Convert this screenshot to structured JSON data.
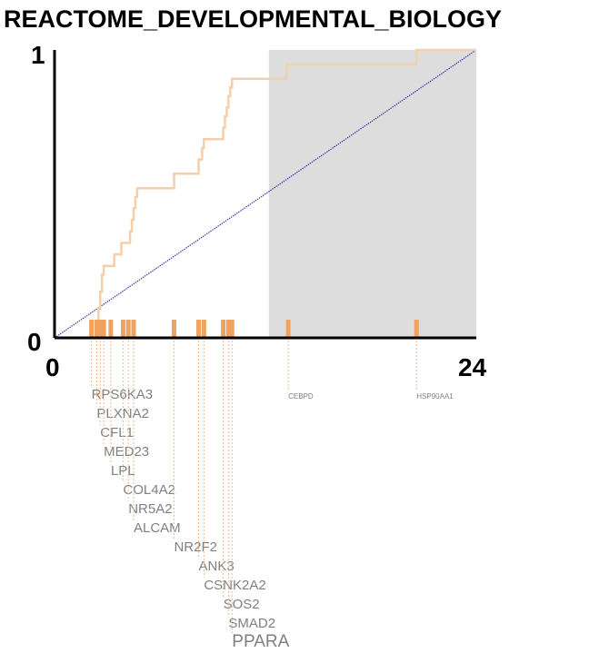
{
  "chart_data": {
    "type": "line",
    "title": "REACTOME_DEVELOPMENTAL_BIOLOGY",
    "xlim": [
      0,
      24
    ],
    "ylim": [
      0,
      1
    ],
    "x_ticks": [
      "0",
      "24"
    ],
    "y_ticks": [
      "0",
      "1"
    ],
    "grid": false,
    "shaded_region": {
      "x_start": 12.2,
      "x_end": 24
    },
    "colors": {
      "background": "#ffffff",
      "shade": "#dddddd",
      "curve": "#f5cfa9",
      "diagonal": "#3a3aa8",
      "rug": "#f0a25e",
      "leader": "#f4b98a",
      "gene_label": "#808080",
      "axis": "#000000"
    },
    "series": [
      {
        "steps": [
          [
            0,
            0
          ],
          [
            2.4,
            0.05
          ],
          [
            2.5,
            0.1
          ],
          [
            2.6,
            0.16
          ],
          [
            2.7,
            0.22
          ],
          [
            2.8,
            0.25
          ],
          [
            3.4,
            0.29
          ],
          [
            3.8,
            0.33
          ],
          [
            4.3,
            0.37
          ],
          [
            4.4,
            0.41
          ],
          [
            4.5,
            0.45
          ],
          [
            4.6,
            0.49
          ],
          [
            4.7,
            0.52
          ],
          [
            6.8,
            0.57
          ],
          [
            8.2,
            0.62
          ],
          [
            8.4,
            0.66
          ],
          [
            8.5,
            0.69
          ],
          [
            9.6,
            0.73
          ],
          [
            9.7,
            0.77
          ],
          [
            9.8,
            0.8
          ],
          [
            9.9,
            0.84
          ],
          [
            10.0,
            0.87
          ],
          [
            10.1,
            0.9
          ],
          [
            10.2,
            0.9
          ],
          [
            13.2,
            0.95
          ],
          [
            20.6,
            1.0
          ],
          [
            24,
            1.0
          ]
        ]
      },
      {
        "points": [
          [
            0,
            0
          ],
          [
            24,
            1
          ]
        ]
      }
    ],
    "rug": [
      {
        "x": 2.1,
        "gene": "RPS6KA3",
        "size": "medium"
      },
      {
        "x": 2.4,
        "gene": "PLXNA2",
        "size": "medium"
      },
      {
        "x": 2.6,
        "gene": "CFL1",
        "size": "medium"
      },
      {
        "x": 2.8,
        "gene": "MED23",
        "size": "medium"
      },
      {
        "x": 3.2,
        "gene": "LPL",
        "size": "medium"
      },
      {
        "x": 3.9,
        "gene": "COL4A2",
        "size": "medium"
      },
      {
        "x": 4.2,
        "gene": "NR5A2",
        "size": "medium"
      },
      {
        "x": 4.5,
        "gene": "ALCAM",
        "size": "medium"
      },
      {
        "x": 6.8,
        "gene": "NR2F2",
        "size": "medium"
      },
      {
        "x": 8.2,
        "gene": "ANK3",
        "size": "medium"
      },
      {
        "x": 8.5,
        "gene": "CSNK2A2",
        "size": "medium"
      },
      {
        "x": 9.6,
        "gene": "SOS2",
        "size": "medium"
      },
      {
        "x": 9.9,
        "gene": "SMAD2",
        "size": "medium"
      },
      {
        "x": 10.1,
        "gene": "PPARA",
        "size": "large"
      },
      {
        "x": 13.3,
        "gene": "CEBPD",
        "size": "small"
      },
      {
        "x": 20.6,
        "gene": "HSP90AA1",
        "size": "small"
      }
    ]
  }
}
